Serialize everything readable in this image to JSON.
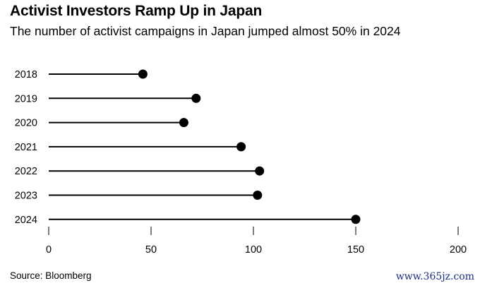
{
  "title": "Activist Investors Ramp Up in Japan",
  "subtitle": "The number of activist campaigns in Japan jumped almost 50% in 2024",
  "source": "Source: Bloomberg",
  "watermark": "www.365jz.com",
  "chart_data": {
    "type": "lollipop",
    "title": "Activist Investors Ramp Up in Japan",
    "subtitle": "The number of activist campaigns in Japan jumped almost 50% in 2024",
    "categories": [
      "2018",
      "2019",
      "2020",
      "2021",
      "2022",
      "2023",
      "2024"
    ],
    "values": [
      46,
      72,
      66,
      94,
      103,
      102,
      150
    ],
    "xlim": [
      0,
      200
    ],
    "xticks": [
      0,
      50,
      100,
      150,
      200
    ],
    "xlabel": "",
    "ylabel": "",
    "grid": false,
    "legend": "none",
    "color": "#000000"
  }
}
